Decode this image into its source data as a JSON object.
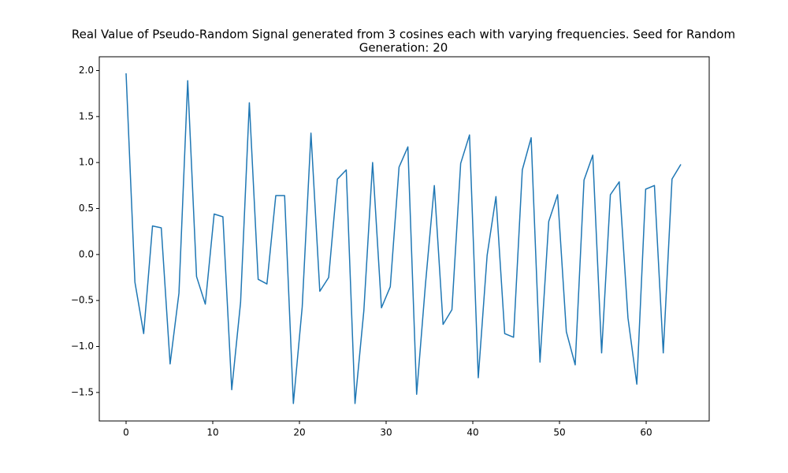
{
  "chart_data": {
    "type": "line",
    "title": [
      "Real Value of Pseudo-Random Signal generated from 3 cosines each with varying frequencies. Seed for Random",
      "Generation: 20"
    ],
    "x": [
      0,
      1.02,
      2.03,
      3.05,
      4.06,
      5.08,
      6.1,
      7.11,
      8.13,
      9.14,
      10.16,
      11.17,
      12.19,
      13.21,
      14.22,
      15.24,
      16.25,
      17.27,
      18.29,
      19.3,
      20.32,
      21.33,
      22.35,
      23.37,
      24.38,
      25.4,
      26.41,
      27.43,
      28.44,
      29.46,
      30.48,
      31.49,
      32.51,
      33.52,
      34.54,
      35.56,
      36.57,
      37.59,
      38.6,
      39.62,
      40.63,
      41.65,
      42.67,
      43.68,
      44.7,
      45.71,
      46.73,
      47.75,
      48.76,
      49.78,
      50.79,
      51.81,
      52.83,
      53.84,
      54.86,
      55.87,
      56.89,
      57.9,
      58.92,
      59.94,
      60.95,
      61.97,
      62.98,
      64
    ],
    "values": [
      1.97,
      -0.3,
      -0.86,
      0.31,
      0.29,
      -1.19,
      -0.42,
      1.89,
      -0.24,
      -0.54,
      0.44,
      0.41,
      -1.47,
      -0.52,
      1.65,
      -0.27,
      -0.32,
      0.64,
      0.64,
      -1.62,
      -0.57,
      1.32,
      -0.4,
      -0.25,
      0.82,
      0.92,
      -1.62,
      -0.61,
      1.0,
      -0.58,
      -0.35,
      0.95,
      1.17,
      -1.52,
      -0.32,
      0.75,
      -0.76,
      -0.6,
      0.99,
      1.3,
      -1.34,
      -0.01,
      0.63,
      -0.86,
      -0.9,
      0.92,
      1.27,
      -1.17,
      0.36,
      0.65,
      -0.84,
      -1.2,
      0.81,
      1.08,
      -1.07,
      0.65,
      0.79,
      -0.69,
      -1.41,
      0.71,
      0.75,
      -1.07,
      0.82,
      0.98
    ],
    "color": "#1f77b4",
    "xlim": [
      -3.09,
      67.27
    ],
    "ylim": [
      -1.81,
      2.15
    ],
    "xticks": [
      0,
      10,
      20,
      30,
      40,
      50,
      60
    ],
    "yticks": [
      {
        "value": -1.5,
        "label": "−1.5"
      },
      {
        "value": -1,
        "label": "−1.0"
      },
      {
        "value": -0.5,
        "label": "−0.5"
      },
      {
        "value": 0,
        "label": "0.0"
      },
      {
        "value": 0.5,
        "label": "0.5"
      },
      {
        "value": 1,
        "label": "1.0"
      },
      {
        "value": 1.5,
        "label": "1.5"
      },
      {
        "value": 2,
        "label": "2.0"
      }
    ],
    "grid": false
  }
}
